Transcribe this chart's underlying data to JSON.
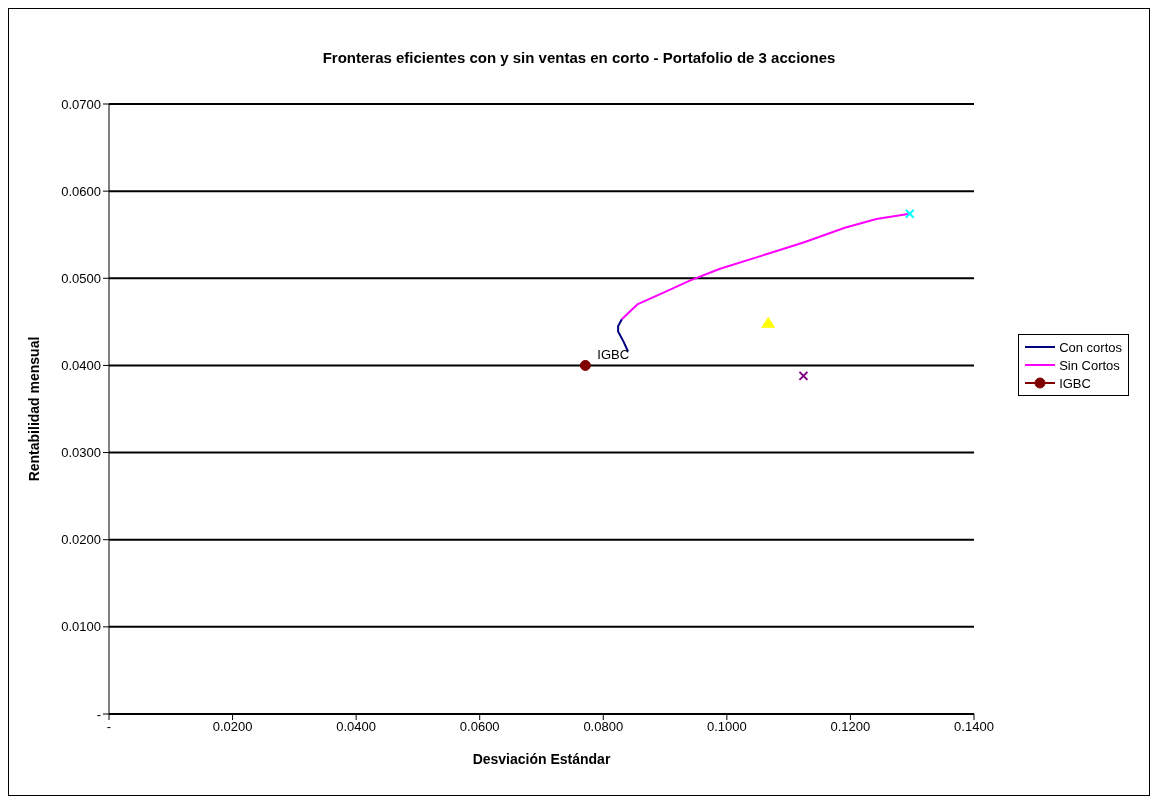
{
  "chart_data": {
    "type": "line",
    "title": "Fronteras eficientes con y sin ventas en corto - Portafolio de 3 acciones",
    "xlabel": "Desviación Estándar",
    "ylabel": "Rentabilidad mensual",
    "xlim": [
      0,
      0.14
    ],
    "xticks": [
      {
        "value": 0,
        "label": "-"
      },
      {
        "value": 0.02,
        "label": "0.0200"
      },
      {
        "value": 0.04,
        "label": "0.0400"
      },
      {
        "value": 0.06,
        "label": "0.0600"
      },
      {
        "value": 0.08,
        "label": "0.0800"
      },
      {
        "value": 0.1,
        "label": "0.1000"
      },
      {
        "value": 0.12,
        "label": "0.1200"
      },
      {
        "value": 0.14,
        "label": "0.1400"
      }
    ],
    "ylim": [
      0,
      0.07
    ],
    "yticks": [
      {
        "value": 0,
        "label": "-"
      },
      {
        "value": 0.01,
        "label": "0.0100"
      },
      {
        "value": 0.02,
        "label": "0.0200"
      },
      {
        "value": 0.03,
        "label": "0.0300"
      },
      {
        "value": 0.04,
        "label": "0.0400"
      },
      {
        "value": 0.05,
        "label": "0.0500"
      },
      {
        "value": 0.06,
        "label": "0.0600"
      },
      {
        "value": 0.07,
        "label": "0.0700"
      }
    ],
    "grid": "y",
    "legend": "right",
    "series": [
      {
        "name": "Con cortos",
        "type": "line",
        "color": "#000080",
        "marker": "none",
        "x": [
          0.084,
          0.0833,
          0.0824,
          0.0824,
          0.083
        ],
        "values": [
          0.0416,
          0.0427,
          0.0439,
          0.0445,
          0.0453
        ]
      },
      {
        "name": "Sin Cortos",
        "type": "line",
        "color": "#ff00ff",
        "marker": "none",
        "x": [
          0.083,
          0.0855,
          0.0902,
          0.0939,
          0.0989,
          0.1057,
          0.1124,
          0.1191,
          0.1242,
          0.1296
        ],
        "values": [
          0.0453,
          0.047,
          0.0485,
          0.0497,
          0.0511,
          0.0526,
          0.0541,
          0.0558,
          0.0568,
          0.0574
        ]
      },
      {
        "type": "scatter",
        "color": "#ffff00",
        "marker": "triangle",
        "x": [
          0.1067
        ],
        "values": [
          0.0449
        ]
      },
      {
        "type": "scatter",
        "color": "#00ffff",
        "marker": "cross",
        "x": [
          0.1296
        ],
        "values": [
          0.0574
        ]
      },
      {
        "type": "scatter",
        "color": "#800080",
        "marker": "cross",
        "x": [
          0.1124
        ],
        "values": [
          0.0388
        ]
      },
      {
        "name": "IGBC",
        "type": "scatter",
        "color": "#800000",
        "marker": "circle",
        "x": [
          0.0771
        ],
        "values": [
          0.04
        ]
      }
    ],
    "annotations": [
      {
        "text": "IGBC",
        "x": 0.0771,
        "y": 0.04
      }
    ]
  }
}
